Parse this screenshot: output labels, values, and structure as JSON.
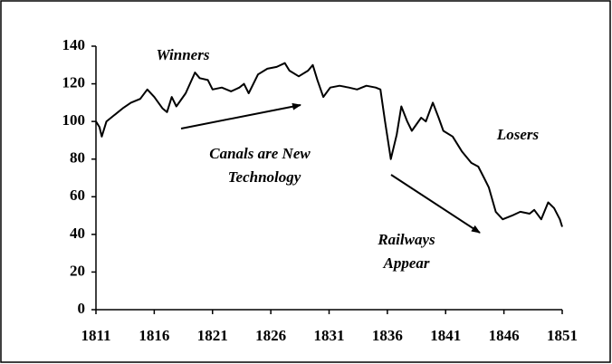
{
  "chart_data": {
    "type": "line",
    "x": [
      1811.0,
      1811.3,
      1811.5,
      1811.9,
      1812.5,
      1813.3,
      1814.0,
      1814.8,
      1815.4,
      1816.0,
      1816.7,
      1817.1,
      1817.5,
      1817.9,
      1818.7,
      1819.5,
      1819.9,
      1820.6,
      1821.0,
      1821.8,
      1822.6,
      1823.3,
      1823.7,
      1824.1,
      1824.9,
      1825.7,
      1826.5,
      1827.2,
      1827.6,
      1828.4,
      1829.2,
      1829.6,
      1830.0,
      1830.5,
      1831.1,
      1831.9,
      1832.7,
      1833.4,
      1834.2,
      1835.0,
      1835.4,
      1835.8,
      1836.3,
      1836.8,
      1837.2,
      1837.7,
      1838.1,
      1838.9,
      1839.3,
      1839.9,
      1840.4,
      1840.8,
      1841.6,
      1842.4,
      1843.2,
      1843.8,
      1844.3,
      1844.7,
      1845.3,
      1845.9,
      1846.7,
      1847.4,
      1848.2,
      1848.6,
      1849.2,
      1849.8,
      1850.3,
      1850.8,
      1851.0
    ],
    "values": [
      100,
      97,
      92,
      100,
      103,
      107,
      110,
      112,
      117,
      113,
      107,
      105,
      113,
      108,
      115,
      126,
      123,
      122,
      117,
      118,
      116,
      118,
      120,
      115,
      125,
      128,
      129,
      131,
      127,
      124,
      127,
      130,
      122,
      113,
      118,
      119,
      118,
      117,
      119,
      118,
      117,
      100,
      80,
      93,
      108,
      100,
      95,
      102,
      100,
      110,
      102,
      95,
      92,
      84,
      78,
      76,
      70,
      65,
      52,
      48,
      50,
      52,
      51,
      53,
      48,
      57,
      54,
      48,
      44
    ],
    "color": "#000000",
    "xlim": [
      1811,
      1851
    ],
    "xticks": [
      1811,
      1816,
      1821,
      1826,
      1831,
      1836,
      1841,
      1846,
      1851
    ],
    "ylim": [
      0,
      140
    ],
    "yticks": [
      0,
      20,
      40,
      60,
      80,
      100,
      120,
      140
    ],
    "annotations": [
      [
        "Winners"
      ],
      [
        "Canals are New",
        "Technology"
      ],
      [
        "Losers"
      ],
      [
        "Railways",
        "Appear"
      ]
    ]
  }
}
